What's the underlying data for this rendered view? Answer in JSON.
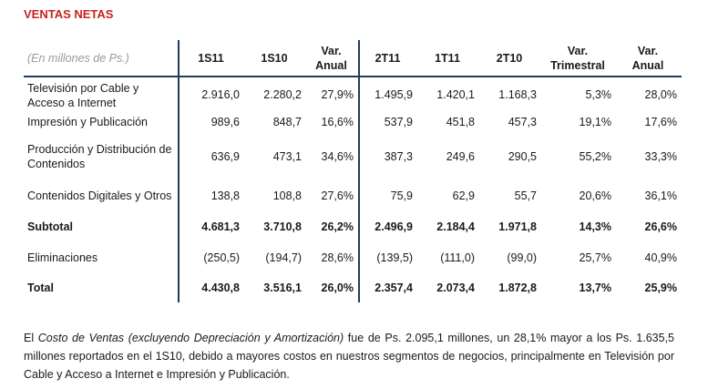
{
  "title": "VENTAS NETAS",
  "table": {
    "unit_label": "(En millones de Ps.)",
    "headers": [
      "1S11",
      "1S10",
      "Var.\nAnual",
      "2T11",
      "1T11",
      "2T10",
      "Var.\nTrimestral",
      "Var.\nAnual"
    ],
    "rows": [
      {
        "label": "Televisión por Cable y Acceso a Internet",
        "cells": [
          "2.916,0",
          "2.280,2",
          "27,9%",
          "1.495,9",
          "1.420,1",
          "1.168,3",
          "5,3%",
          "28,0%"
        ],
        "bold": false
      },
      {
        "label": "Impresión y Publicación",
        "cells": [
          "989,6",
          "848,7",
          "16,6%",
          "537,9",
          "451,8",
          "457,3",
          "19,1%",
          "17,6%"
        ],
        "bold": false
      },
      {
        "label": "Producción y Distribución de Contenidos",
        "cells": [
          "636,9",
          "473,1",
          "34,6%",
          "387,3",
          "249,6",
          "290,5",
          "55,2%",
          "33,3%"
        ],
        "bold": false
      },
      {
        "label": "Contenidos Digitales y Otros",
        "cells": [
          "138,8",
          "108,8",
          "27,6%",
          "75,9",
          "62,9",
          "55,7",
          "20,6%",
          "36,1%"
        ],
        "bold": false
      },
      {
        "label": "Subtotal",
        "cells": [
          "4.681,3",
          "3.710,8",
          "26,2%",
          "2.496,9",
          "2.184,4",
          "1.971,8",
          "14,3%",
          "26,6%"
        ],
        "bold": true
      },
      {
        "label": "Eliminaciones",
        "cells": [
          "(250,5)",
          "(194,7)",
          "28,6%",
          "(139,5)",
          "(111,0)",
          "(99,0)",
          "25,7%",
          "40,9%"
        ],
        "bold": false
      },
      {
        "label": "Total",
        "cells": [
          "4.430,8",
          "3.516,1",
          "26,0%",
          "2.357,4",
          "2.073,4",
          "1.872,8",
          "13,7%",
          "25,9%"
        ],
        "bold": true
      }
    ]
  },
  "paragraph": {
    "prefix": "El ",
    "emphasis": "Costo de Ventas (excluyendo Depreciación y Amortización)",
    "rest": " fue de Ps. 2.095,1 millones, un 28,1% mayor a los Ps. 1.635,5 millones reportados en el 1S10, debido a mayores costos en nuestros segmentos de negocios, principalmente en Televisión por Cable y Acceso a Internet e Impresión y Publicación."
  }
}
